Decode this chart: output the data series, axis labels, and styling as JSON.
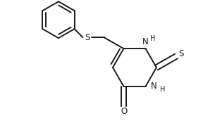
{
  "background_color": "#ffffff",
  "line_color": "#1a1a1a",
  "line_width": 1.4,
  "font_size": 8.5,
  "figsize": [
    2.88,
    1.92
  ],
  "dpi": 100,
  "xlim": [
    0,
    288
  ],
  "ylim": [
    0,
    192
  ]
}
